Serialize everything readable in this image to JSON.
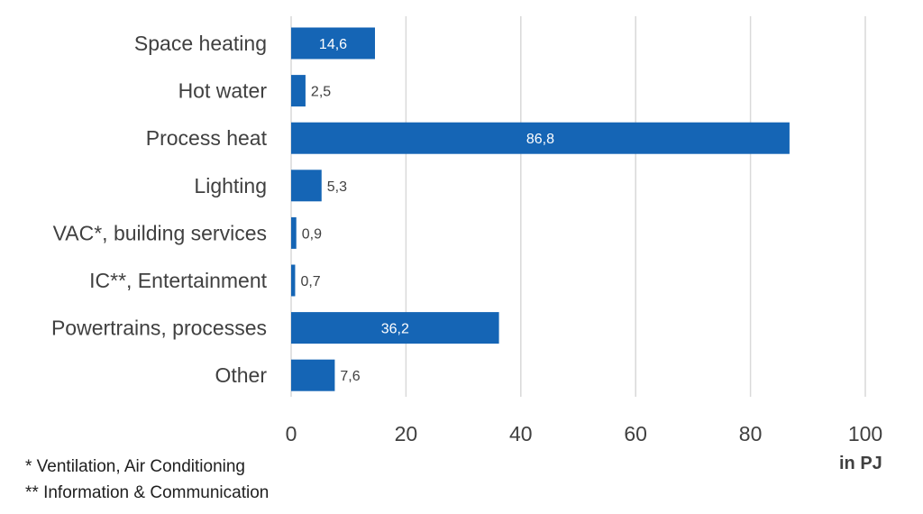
{
  "chart_data": {
    "type": "bar",
    "orientation": "horizontal",
    "categories": [
      "Space heating",
      "Hot water",
      "Process heat",
      "Lighting",
      "VAC*, building services",
      "IC**, Entertainment",
      "Powertrains, processes",
      "Other"
    ],
    "values": [
      14.6,
      2.5,
      86.8,
      5.3,
      0.9,
      0.7,
      36.2,
      7.6
    ],
    "value_labels": [
      "14,6",
      "2,5",
      "86,8",
      "5,3",
      "0,9",
      "0,7",
      "36,2",
      "7,6"
    ],
    "xlim": [
      0,
      100
    ],
    "xticks": [
      0,
      20,
      40,
      60,
      80,
      100
    ],
    "xlabel": "in PJ",
    "grid": "vertical",
    "bar_color": "#1565b5"
  },
  "footnotes": {
    "vac": "* Ventilation, Air Conditioning",
    "ic": "** Information & Communication"
  }
}
